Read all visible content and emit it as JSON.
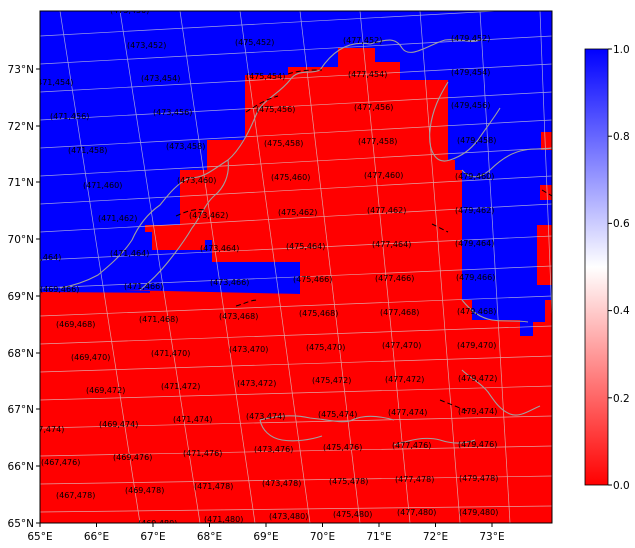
{
  "colors": {
    "land_fill": "#ff0000",
    "water_fill": "#0000ff",
    "graticule": "#d9d9d9",
    "coastline": "#a0a0a0",
    "dashed_boundary": "#000000"
  },
  "axes": {
    "x_ticks": [
      "65°E",
      "66°E",
      "67°E",
      "68°E",
      "69°E",
      "70°E",
      "71°E",
      "72°E",
      "73°E"
    ],
    "y_ticks": [
      "73°N",
      "72°N",
      "71°N",
      "70°N",
      "69°N",
      "68°N",
      "67°N",
      "66°N",
      "65°N"
    ]
  },
  "colorbar": {
    "ticks": [
      "1.0",
      "0.8",
      "0.6",
      "0.4",
      "0.2",
      "0.0"
    ],
    "range": [
      0.0,
      1.0
    ]
  },
  "grid_labels": [
    "(473,450)",
    "(473,452)",
    "(475,452)",
    "(477,452)",
    "(479,452)",
    "(471,454)",
    "(473,454)",
    "(475,454)",
    "(477,454)",
    "(479,454)",
    "(471,456)",
    "(473,456)",
    "(475,456)",
    "(477,456)",
    "(479,456)",
    "(471,458)",
    "(473,458)",
    "(475,458)",
    "(477,458)",
    "(479,458)",
    "(471,460)",
    "(473,460)",
    "(475,460)",
    "(477,460)",
    "(479,460)",
    "(471,462)",
    "(473,462)",
    "(475,462)",
    "(477,462)",
    "(479,462)",
    "(469,464)",
    "(471,464)",
    "(473,464)",
    "(475,464)",
    "(477,464)",
    "(479,464)",
    "(469,466)",
    "(471,466)",
    "(473,466)",
    "(475,466)",
    "(477,466)",
    "(479,466)",
    "(469,468)",
    "(471,468)",
    "(473,468)",
    "(475,468)",
    "(477,468)",
    "(479,468)",
    "(469,470)",
    "(471,470)",
    "(473,470)",
    "(475,470)",
    "(477,470)",
    "(479,470)",
    "(469,472)",
    "(471,472)",
    "(473,472)",
    "(475,472)",
    "(477,472)",
    "(479,472)",
    "(467,474)",
    "(469,474)",
    "(471,474)",
    "(473,474)",
    "(475,474)",
    "(477,474)",
    "(479,474)",
    "(467,476)",
    "(469,476)",
    "(471,476)",
    "(473,476)",
    "(475,476)",
    "(477,476)",
    "(479,476)",
    "(467,478)",
    "(469,478)",
    "(471,478)",
    "(473,478)",
    "(475,478)",
    "(477,478)",
    "(479,478)",
    "(469,480)",
    "(471,480)",
    "(473,480)",
    "(475,480)",
    "(477,480)",
    "(479,480)",
    "(471,456)"
  ]
}
